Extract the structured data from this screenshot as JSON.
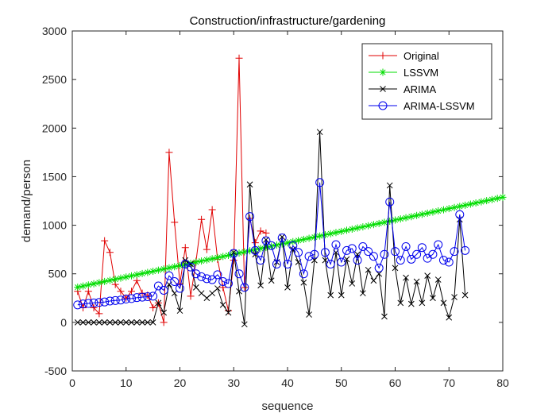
{
  "chart_data": {
    "type": "line",
    "title": "Construction/infrastructure/gardening",
    "xlabel": "sequence",
    "ylabel": "demand/person",
    "xlim": [
      0,
      80
    ],
    "ylim": [
      -500,
      3000
    ],
    "xticks": [
      0,
      10,
      20,
      30,
      40,
      50,
      60,
      70,
      80
    ],
    "yticks": [
      -500,
      0,
      500,
      1000,
      1500,
      2000,
      2500,
      3000
    ],
    "grid": false,
    "legend_position": "top-right",
    "series": [
      {
        "name": "Original",
        "color": "#e00000",
        "marker": "plus",
        "x": [
          1,
          2,
          3,
          4,
          5,
          6,
          7,
          8,
          9,
          10,
          11,
          12,
          13,
          14,
          15,
          16,
          17,
          18,
          19,
          20,
          21,
          22,
          23,
          24,
          25,
          26,
          27,
          28,
          29,
          30,
          31,
          32,
          33,
          34,
          35,
          36
        ],
        "y": [
          320,
          150,
          320,
          150,
          90,
          840,
          720,
          390,
          320,
          250,
          320,
          430,
          300,
          280,
          150,
          200,
          0,
          1750,
          1030,
          400,
          770,
          270,
          630,
          1060,
          750,
          1160,
          650,
          360,
          120,
          640,
          2720,
          360,
          1070,
          820,
          940,
          920
        ]
      },
      {
        "name": "LSSVM",
        "color": "#00dd00",
        "marker": "star",
        "x_start": 1,
        "x_end": 80,
        "y_start": 362,
        "y_end": 1288
      },
      {
        "name": "ARIMA",
        "color": "#000000",
        "marker": "x",
        "x": [
          1,
          2,
          3,
          4,
          5,
          6,
          7,
          8,
          9,
          10,
          11,
          12,
          13,
          14,
          15,
          16,
          17,
          18,
          19,
          20,
          21,
          22,
          23,
          24,
          25,
          26,
          27,
          28,
          29,
          30,
          31,
          32,
          33,
          34,
          35,
          36,
          37,
          38,
          39,
          40,
          41,
          42,
          43,
          44,
          45,
          46,
          47,
          48,
          49,
          50,
          51,
          52,
          53,
          54,
          55,
          56,
          57,
          58,
          59,
          60,
          61,
          62,
          63,
          64,
          65,
          66,
          67,
          68,
          69,
          70,
          71,
          72,
          73
        ],
        "y": [
          0,
          0,
          0,
          0,
          0,
          0,
          0,
          0,
          0,
          0,
          0,
          0,
          0,
          0,
          0,
          200,
          100,
          390,
          300,
          120,
          640,
          600,
          360,
          300,
          250,
          300,
          350,
          180,
          100,
          720,
          320,
          -20,
          1420,
          700,
          380,
          850,
          430,
          620,
          880,
          360,
          750,
          620,
          410,
          80,
          640,
          1960,
          640,
          280,
          720,
          280,
          650,
          400,
          700,
          300,
          540,
          430,
          500,
          60,
          1410,
          560,
          200,
          460,
          190,
          420,
          200,
          480,
          250,
          440,
          200,
          50,
          260,
          1060,
          280
        ]
      },
      {
        "name": "ARIMA-LSSVM",
        "color": "#0000ee",
        "marker": "circle",
        "x": [
          1,
          2,
          3,
          4,
          5,
          6,
          7,
          8,
          9,
          10,
          11,
          12,
          13,
          14,
          15,
          16,
          17,
          18,
          19,
          20,
          21,
          22,
          23,
          24,
          25,
          26,
          27,
          28,
          29,
          30,
          31,
          32,
          33,
          34,
          35,
          36,
          37,
          38,
          39,
          40,
          41,
          42,
          43,
          44,
          45,
          46,
          47,
          48,
          49,
          50,
          51,
          52,
          53,
          54,
          55,
          56,
          57,
          58,
          59,
          60,
          61,
          62,
          63,
          64,
          65,
          66,
          67,
          68,
          69,
          70,
          71,
          72,
          73
        ],
        "y": [
          180,
          190,
          195,
          200,
          205,
          210,
          220,
          225,
          230,
          240,
          245,
          255,
          260,
          265,
          270,
          375,
          330,
          480,
          420,
          350,
          600,
          570,
          500,
          470,
          450,
          440,
          490,
          420,
          400,
          710,
          500,
          360,
          1090,
          740,
          640,
          840,
          790,
          600,
          870,
          600,
          790,
          720,
          500,
          680,
          700,
          1440,
          720,
          600,
          800,
          620,
          740,
          760,
          640,
          780,
          730,
          680,
          560,
          700,
          1240,
          730,
          640,
          780,
          650,
          700,
          770,
          660,
          700,
          800,
          640,
          620,
          730,
          1110,
          740
        ]
      }
    ]
  }
}
